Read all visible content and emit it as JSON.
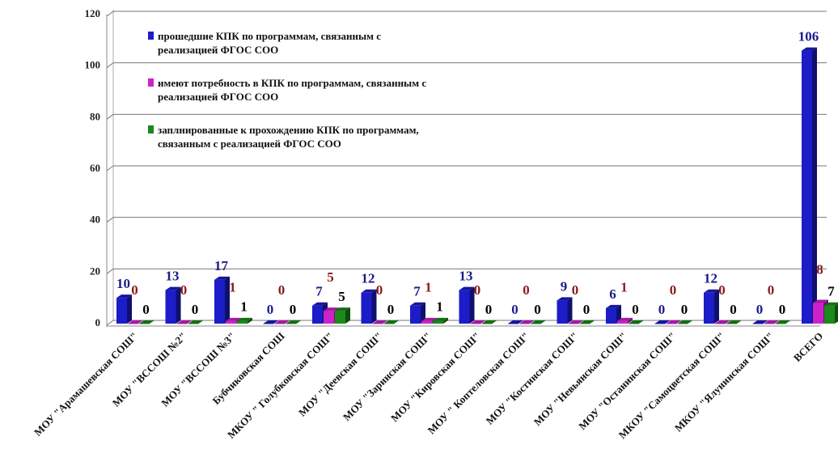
{
  "chart_data": {
    "type": "bar3d",
    "categories": [
      "МОУ \"Арамашевская СОШ\"",
      "МОУ \"ВССОШ №2\"",
      "МОУ \"ВССОШ №3\"",
      "Бубчиковская СОШ",
      "МКОУ \" Голубковская СОШ\"",
      "МОУ \"Деевская СОШ\"",
      "МОУ \"Заринская СОШ\"",
      "МОУ \"Кировская СОШ\"",
      "МОУ \" Коптеловская СОШ\"",
      "МОУ \"Костинская СОШ\"",
      "МОУ \"Невьянская СОШ\"",
      "МОУ \"Останинская СОШ\"",
      "МКОУ \"Самоцветская СОШ\"",
      "МКОУ \"Ялунинская СОШ\"",
      "ВСЕГО"
    ],
    "series": [
      {
        "name": "прошедшие КПК по программам, связанным с реализацией ФГОС СОО",
        "color": "#1c1cc8",
        "label_color": "#1a1a8c",
        "values": [
          10,
          13,
          17,
          0,
          7,
          12,
          7,
          13,
          0,
          9,
          6,
          0,
          12,
          0,
          106
        ]
      },
      {
        "name": "имеют потребность в КПК по программам, связанным с реализацией ФГОС СОО",
        "color": "#cc22cc",
        "label_color": "#8b1a1a",
        "values": [
          0,
          0,
          1,
          0,
          5,
          0,
          1,
          0,
          0,
          0,
          1,
          0,
          0,
          0,
          8
        ]
      },
      {
        "name": "заплнированные к прохождению КПК по программам, связанным с реализацией ФГОС СОО",
        "color": "#1a8a1a",
        "label_color": "#000000",
        "values": [
          0,
          0,
          1,
          0,
          5,
          0,
          1,
          0,
          0,
          0,
          0,
          0,
          0,
          0,
          7
        ]
      }
    ],
    "ylim": [
      0,
      120
    ],
    "yticks": [
      0,
      20,
      40,
      60,
      80,
      100,
      120
    ],
    "grid": true,
    "legend": "top-left"
  }
}
